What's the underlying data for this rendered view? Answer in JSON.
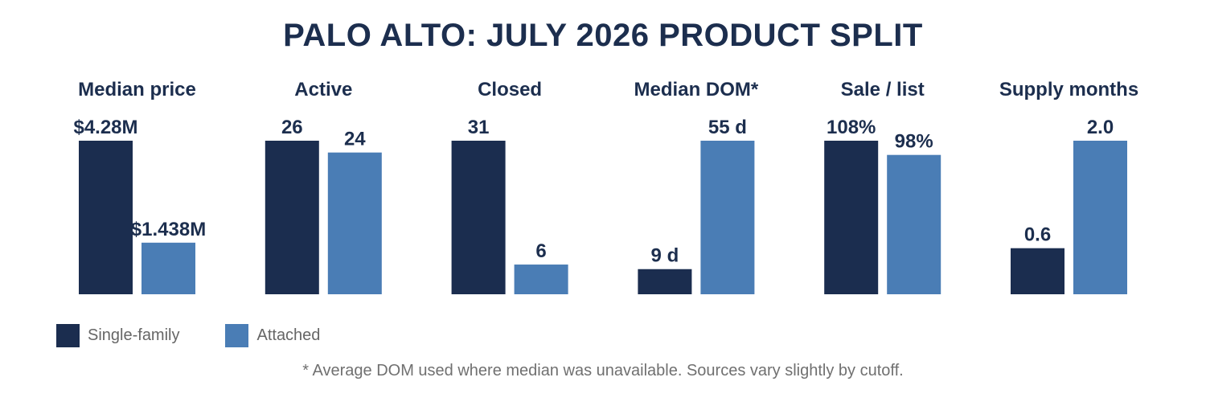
{
  "colors": {
    "title": "#1c2e4e",
    "single_family": "#1b2d4f",
    "attached": "#4a7db5",
    "text_muted": "#666666"
  },
  "chart_data": {
    "type": "bar",
    "title": "PALO ALTO: JULY 2026 PRODUCT SPLIT",
    "series_names": [
      "Single-family",
      "Attached"
    ],
    "legend_position": "bottom-left",
    "grid": false,
    "panels": [
      {
        "title": "Median price",
        "values": [
          4.28,
          1.438
        ],
        "labels": [
          "$4.28M",
          "$1.438M"
        ],
        "ylim": [
          0,
          4.28
        ]
      },
      {
        "title": "Active",
        "values": [
          26,
          24
        ],
        "labels": [
          "26",
          "24"
        ],
        "ylim": [
          0,
          26
        ]
      },
      {
        "title": "Closed",
        "values": [
          31,
          6
        ],
        "labels": [
          "31",
          "6"
        ],
        "ylim": [
          0,
          31
        ]
      },
      {
        "title": "Median DOM*",
        "values": [
          9,
          55
        ],
        "labels": [
          "9 d",
          "55 d"
        ],
        "ylim": [
          0,
          55
        ]
      },
      {
        "title": "Sale / list",
        "values": [
          108,
          98
        ],
        "labels": [
          "108%",
          "98%"
        ],
        "ylim": [
          0,
          108
        ]
      },
      {
        "title": "Supply months",
        "values": [
          0.6,
          2.0
        ],
        "labels": [
          "0.6",
          "2.0"
        ],
        "ylim": [
          0,
          2.0
        ]
      }
    ],
    "footnote": "* Average DOM used where median was unavailable. Sources vary slightly by cutoff."
  }
}
